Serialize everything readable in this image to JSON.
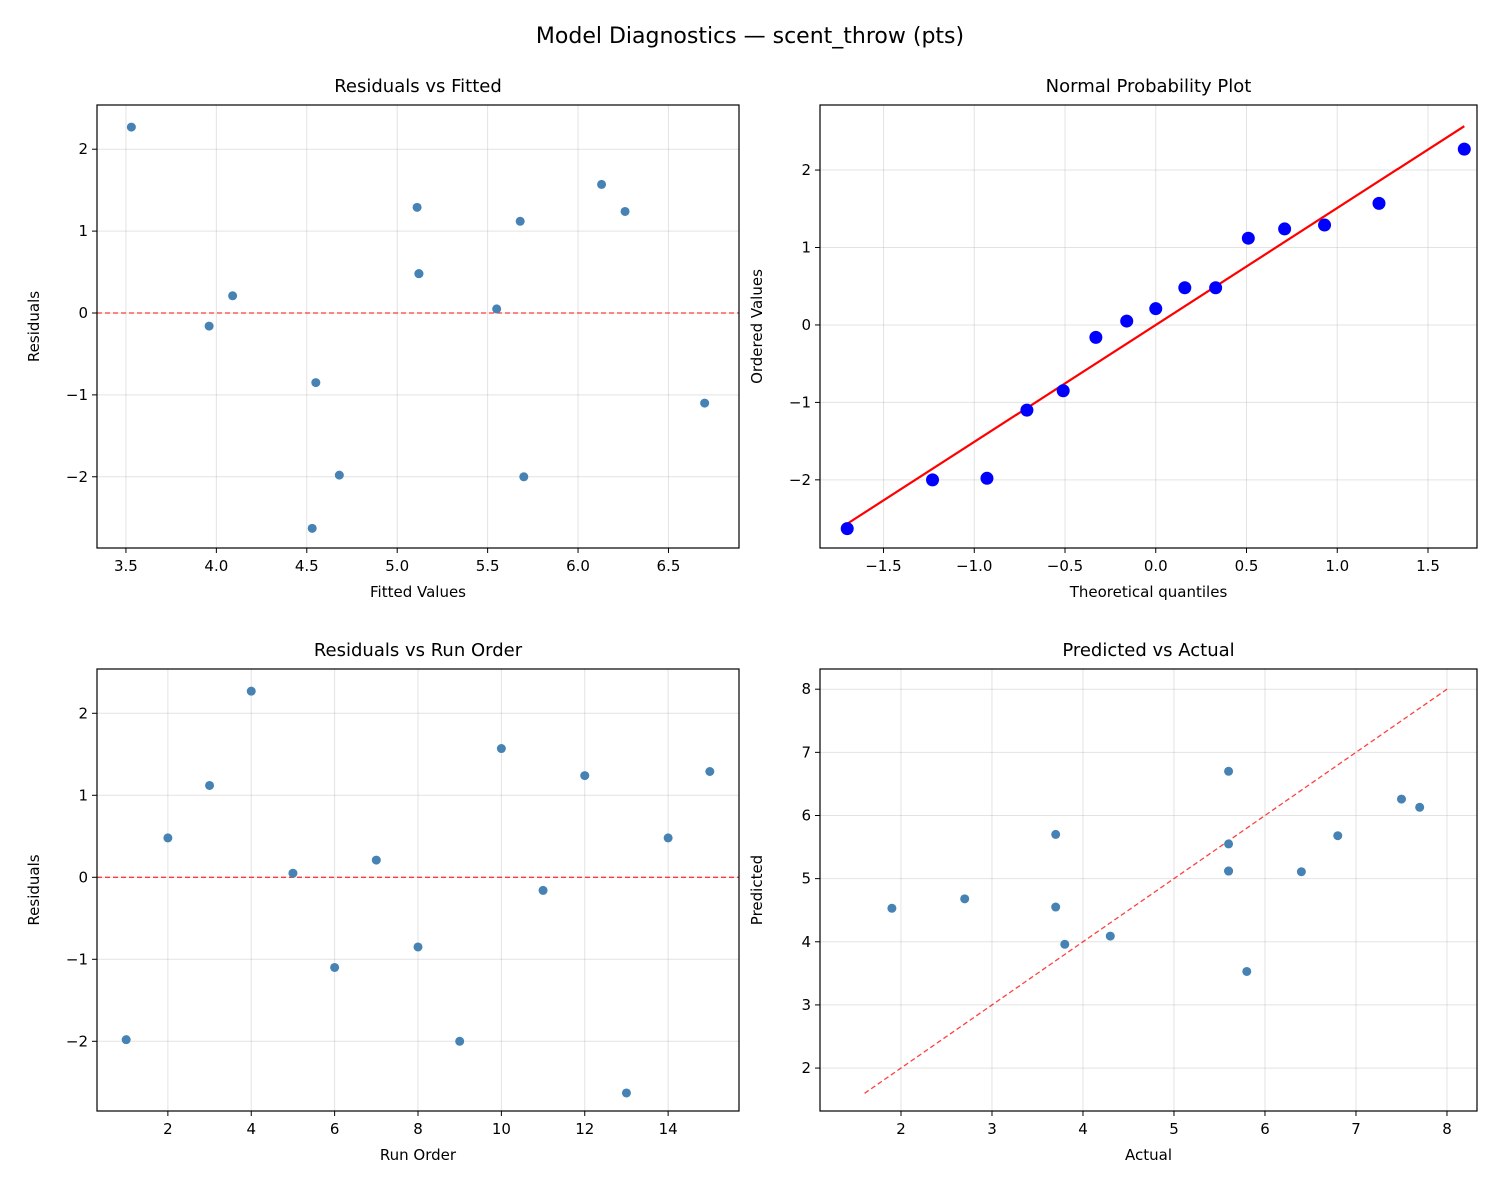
{
  "suptitle": "Model Diagnostics — scent_throw (pts)",
  "chart_data": [
    {
      "type": "scatter",
      "title": "Residuals vs Fitted",
      "xlabel": "Fitted Values",
      "ylabel": "Residuals",
      "xlim": [
        3.34,
        6.89
      ],
      "ylim": [
        -2.87,
        2.54
      ],
      "xticks": [
        3.5,
        4.0,
        4.5,
        5.0,
        5.5,
        6.0,
        6.5
      ],
      "xtick_labels": [
        "3.5",
        "4.0",
        "4.5",
        "5.0",
        "5.5",
        "6.0",
        "6.5"
      ],
      "yticks": [
        -2,
        -1,
        0,
        1,
        2
      ],
      "ytick_labels": [
        "−2",
        "−1",
        "0",
        "1",
        "2"
      ],
      "grid": true,
      "marker_color": "#4682b4",
      "x": [
        4.68,
        5.12,
        5.68,
        3.53,
        5.55,
        6.7,
        4.09,
        4.55,
        5.7,
        6.13,
        3.96,
        6.26,
        4.53,
        5.12,
        5.11
      ],
      "y": [
        -1.98,
        0.48,
        1.12,
        2.27,
        0.05,
        -1.1,
        0.21,
        -0.85,
        -2.0,
        1.57,
        -0.16,
        1.24,
        -2.63,
        0.48,
        1.29
      ],
      "reference_line": {
        "kind": "horizontal",
        "y": 0,
        "style": "dashed",
        "color": "#ff0000"
      }
    },
    {
      "type": "scatter",
      "title": "Normal Probability Plot",
      "xlabel": "Theoretical quantiles",
      "ylabel": "Ordered Values",
      "xlim": [
        -1.85,
        1.77
      ],
      "ylim": [
        -2.88,
        2.84
      ],
      "xticks": [
        -1.5,
        -1.0,
        -0.5,
        0.0,
        0.5,
        1.0,
        1.5
      ],
      "xtick_labels": [
        "−1.5",
        "−1.0",
        "−0.5",
        "0.0",
        "0.5",
        "1.0",
        "1.5"
      ],
      "yticks": [
        -2,
        -1,
        0,
        1,
        2
      ],
      "ytick_labels": [
        "−2",
        "−1",
        "0",
        "1",
        "2"
      ],
      "grid": true,
      "marker_color": "#0000ff",
      "x": [
        -1.7,
        -1.23,
        -0.93,
        -0.71,
        -0.51,
        -0.33,
        -0.16,
        0.0,
        0.16,
        0.33,
        0.51,
        0.71,
        0.93,
        1.23,
        1.7
      ],
      "y": [
        -2.63,
        -2.0,
        -1.98,
        -1.1,
        -0.85,
        -0.16,
        0.05,
        0.21,
        0.48,
        0.48,
        1.12,
        1.24,
        1.29,
        1.57,
        2.27
      ],
      "reference_line": {
        "kind": "fit",
        "slope": 1.51,
        "intercept": 0.0,
        "x_range": [
          -1.7,
          1.7
        ],
        "style": "solid",
        "color": "#ff0000"
      }
    },
    {
      "type": "scatter",
      "title": "Residuals vs Run Order",
      "xlabel": "Run Order",
      "ylabel": "Residuals",
      "xlim": [
        0.3,
        15.7
      ],
      "ylim": [
        -2.85,
        2.54
      ],
      "xticks": [
        2,
        4,
        6,
        8,
        10,
        12,
        14
      ],
      "xtick_labels": [
        "2",
        "4",
        "6",
        "8",
        "10",
        "12",
        "14"
      ],
      "yticks": [
        -2,
        -1,
        0,
        1,
        2
      ],
      "ytick_labels": [
        "−2",
        "−1",
        "0",
        "1",
        "2"
      ],
      "grid": true,
      "marker_color": "#4682b4",
      "x": [
        1,
        2,
        3,
        4,
        5,
        6,
        7,
        8,
        9,
        10,
        11,
        12,
        13,
        14,
        15
      ],
      "y": [
        -1.98,
        0.48,
        1.12,
        2.27,
        0.05,
        -1.1,
        0.21,
        -0.85,
        -2.0,
        1.57,
        -0.16,
        1.24,
        -2.63,
        0.48,
        1.29
      ],
      "reference_line": {
        "kind": "horizontal",
        "y": 0,
        "style": "dashed",
        "color": "#ff0000"
      }
    },
    {
      "type": "scatter",
      "title": "Predicted vs Actual",
      "xlabel": "Actual",
      "ylabel": "Predicted",
      "xlim": [
        1.11,
        8.33
      ],
      "ylim": [
        1.32,
        8.32
      ],
      "xticks": [
        2,
        3,
        4,
        5,
        6,
        7,
        8
      ],
      "xtick_labels": [
        "2",
        "3",
        "4",
        "5",
        "6",
        "7",
        "8"
      ],
      "yticks": [
        2,
        3,
        4,
        5,
        6,
        7,
        8
      ],
      "ytick_labels": [
        "2",
        "3",
        "4",
        "5",
        "6",
        "7",
        "8"
      ],
      "grid": true,
      "marker_color": "#4682b4",
      "x": [
        2.7,
        5.6,
        6.8,
        5.8,
        5.6,
        5.6,
        4.3,
        3.7,
        3.7,
        7.7,
        3.8,
        7.5,
        1.9,
        5.6,
        6.4
      ],
      "y": [
        4.68,
        5.12,
        5.68,
        3.53,
        5.55,
        6.7,
        4.09,
        4.55,
        5.7,
        6.13,
        3.96,
        6.26,
        4.53,
        5.12,
        5.11
      ],
      "reference_line": {
        "kind": "diagonal",
        "x_range": [
          1.6,
          8.0
        ],
        "style": "dashed",
        "color": "#ff0000"
      }
    }
  ]
}
